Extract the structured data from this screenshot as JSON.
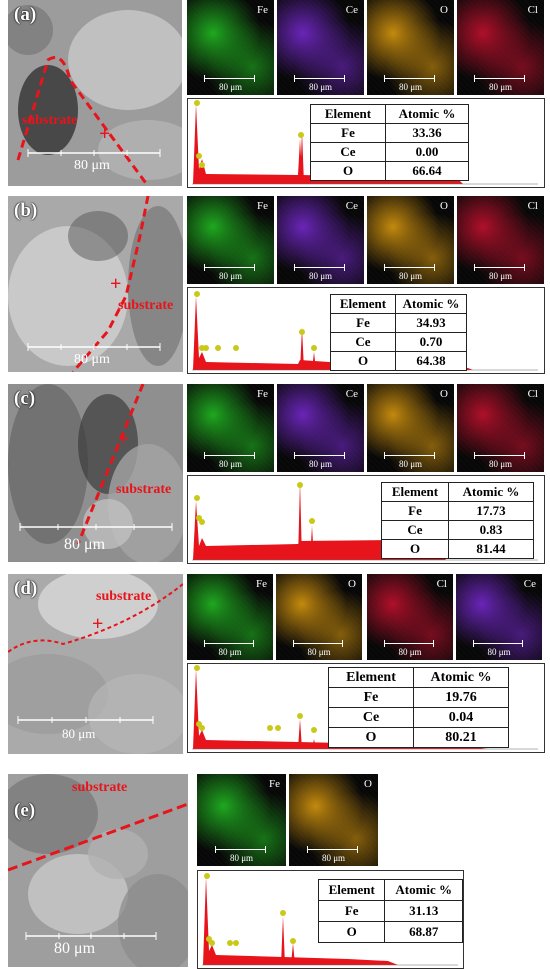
{
  "panels": [
    {
      "label": "(a)",
      "substrate_label": "substrate",
      "scale_label": "80 μm",
      "maps": [
        {
          "element": "Fe",
          "scale": "80 μm",
          "color": "#1fa81f"
        },
        {
          "element": "Ce",
          "scale": "80 μm",
          "color": "#6a25b8"
        },
        {
          "element": "O",
          "scale": "80 μm",
          "color": "#c48a0e"
        },
        {
          "element": "Cl",
          "scale": "80 μm",
          "color": "#b0102a"
        }
      ],
      "table": {
        "headers": [
          "Element",
          "Atomic %"
        ],
        "rows": [
          [
            "Fe",
            "33.36"
          ],
          [
            "Ce",
            "0.00"
          ],
          [
            "O",
            "66.64"
          ]
        ]
      }
    },
    {
      "label": "(b)",
      "substrate_label": "substrate",
      "scale_label": "80 μm",
      "maps": [
        {
          "element": "Fe",
          "scale": "80 μm",
          "color": "#1fa81f"
        },
        {
          "element": "Ce",
          "scale": "80 μm",
          "color": "#6a25b8"
        },
        {
          "element": "O",
          "scale": "80 μm",
          "color": "#c48a0e"
        },
        {
          "element": "Cl",
          "scale": "80 μm",
          "color": "#b0102a"
        }
      ],
      "table": {
        "headers": [
          "Element",
          "Atomic %"
        ],
        "rows": [
          [
            "Fe",
            "34.93"
          ],
          [
            "Ce",
            "0.70"
          ],
          [
            "O",
            "64.38"
          ]
        ]
      }
    },
    {
      "label": "(c)",
      "substrate_label": "substrate",
      "scale_label": "80 μm",
      "maps": [
        {
          "element": "Fe",
          "scale": "80 μm",
          "color": "#1fa81f"
        },
        {
          "element": "Ce",
          "scale": "80 μm",
          "color": "#6a25b8"
        },
        {
          "element": "O",
          "scale": "80 μm",
          "color": "#c48a0e"
        },
        {
          "element": "Cl",
          "scale": "80 μm",
          "color": "#b0102a"
        }
      ],
      "table": {
        "headers": [
          "Element",
          "Atomic %"
        ],
        "rows": [
          [
            "Fe",
            "17.73"
          ],
          [
            "Ce",
            "0.83"
          ],
          [
            "O",
            "81.44"
          ]
        ]
      }
    },
    {
      "label": "(d)",
      "substrate_label": "substrate",
      "scale_label": "80 μm",
      "maps": [
        {
          "element": "Fe",
          "scale": "80 μm",
          "color": "#1fa81f"
        },
        {
          "element": "O",
          "scale": "80 μm",
          "color": "#c48a0e"
        },
        {
          "element": "Cl",
          "scale": "80 μm",
          "color": "#b0102a"
        },
        {
          "element": "Ce",
          "scale": "80 μm",
          "color": "#6a25b8"
        }
      ],
      "table": {
        "headers": [
          "Element",
          "Atomic %"
        ],
        "rows": [
          [
            "Fe",
            "19.76"
          ],
          [
            "Ce",
            "0.04"
          ],
          [
            "O",
            "80.21"
          ]
        ]
      }
    },
    {
      "label": "(e)",
      "substrate_label": "substrate",
      "scale_label": "80 μm",
      "maps": [
        {
          "element": "Fe",
          "scale": "80 μm",
          "color": "#1fa81f"
        },
        {
          "element": "O",
          "scale": "80 μm",
          "color": "#c48a0e"
        }
      ],
      "table": {
        "headers": [
          "Element",
          "Atomic %"
        ],
        "rows": [
          [
            "Fe",
            "31.13"
          ],
          [
            "O",
            "68.87"
          ]
        ]
      }
    }
  ]
}
